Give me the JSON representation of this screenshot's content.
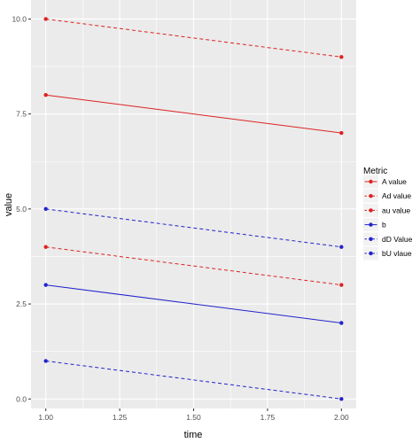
{
  "chart_data": {
    "type": "line",
    "xlabel": "time",
    "ylabel": "value",
    "x": [
      1.0,
      2.0
    ],
    "xlim": [
      0.95,
      2.05
    ],
    "ylim": [
      -0.25,
      10.5
    ],
    "x_ticks": [
      "1.00",
      "1.25",
      "1.50",
      "1.75",
      "2.00"
    ],
    "x_tick_values": [
      1.0,
      1.25,
      1.5,
      1.75,
      2.0
    ],
    "y_ticks": [
      "0.0",
      "2.5",
      "5.0",
      "7.5",
      "10.0"
    ],
    "y_tick_values": [
      0,
      2.5,
      5,
      7.5,
      10
    ],
    "grid": true,
    "legend": {
      "title": "Metric",
      "placement": "right"
    },
    "series": [
      {
        "name": "A value",
        "values": [
          8,
          7
        ],
        "color": "#dd2222",
        "linetype": "solid"
      },
      {
        "name": "Ad value",
        "values": [
          10,
          9
        ],
        "color": "#dd2222",
        "linetype": "dashed"
      },
      {
        "name": "au value",
        "values": [
          4,
          3
        ],
        "color": "#dd2222",
        "linetype": "dashed"
      },
      {
        "name": "b",
        "values": [
          3,
          2
        ],
        "color": "#2222cc",
        "linetype": "solid"
      },
      {
        "name": "dD Value",
        "values": [
          5,
          4
        ],
        "color": "#2222cc",
        "linetype": "dashed"
      },
      {
        "name": "bU vlaue",
        "values": [
          1,
          0
        ],
        "color": "#2222cc",
        "linetype": "dashed"
      }
    ]
  }
}
